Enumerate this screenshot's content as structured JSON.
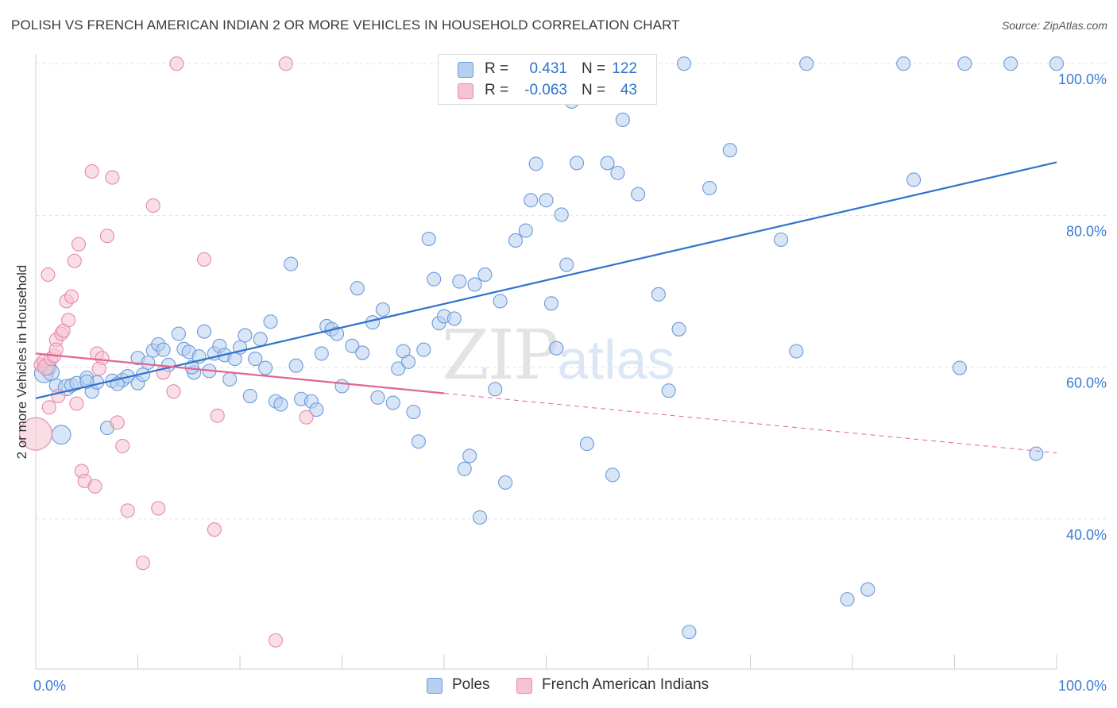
{
  "title": "POLISH VS FRENCH AMERICAN INDIAN 2 OR MORE VEHICLES IN HOUSEHOLD CORRELATION CHART",
  "source": "Source: ZipAtlas.com",
  "watermark": {
    "part1": "ZIP",
    "part2": "atlas"
  },
  "colors": {
    "poles_fill": "#b7cff0",
    "poles_stroke": "#6d9ad8",
    "poles_line": "#2e73cc",
    "fai_fill": "#f6c3d2",
    "fai_stroke": "#e48aa8",
    "fai_line": "#e06595",
    "tick_label": "#3a7bd5",
    "grid": "#e3e3e3"
  },
  "legend": {
    "poles": {
      "r_label": "R =",
      "r_value": "0.431",
      "n_label": "N =",
      "n_value": "122"
    },
    "fai": {
      "r_label": "R =",
      "r_value": "-0.063",
      "n_label": "N =",
      "n_value": "43"
    }
  },
  "bottom_legend": {
    "poles": "Poles",
    "fai": "French American Indians"
  },
  "chart_data": {
    "type": "scatter",
    "title": "POLISH VS FRENCH AMERICAN INDIAN 2 OR MORE VEHICLES IN HOUSEHOLD CORRELATION CHART",
    "xlabel": "",
    "ylabel": "2 or more Vehicles in Household",
    "xlim": [
      0,
      100
    ],
    "ylim": [
      20,
      102
    ],
    "x_tick_labels": [
      {
        "value": 0,
        "label": "0.0%"
      },
      {
        "value": 100,
        "label": "100.0%"
      }
    ],
    "y_tick_labels": [
      {
        "value": 100,
        "label": "100.0%"
      },
      {
        "value": 80,
        "label": "80.0%"
      },
      {
        "value": 60,
        "label": "60.0%"
      },
      {
        "value": 40,
        "label": "40.0%"
      }
    ],
    "grid": true,
    "legend_position": "top-center",
    "series": [
      {
        "name": "Poles",
        "trend": {
          "x": [
            0,
            100
          ],
          "y": [
            55.9,
            87.0
          ],
          "dashed_from": null
        },
        "points": [
          [
            0.8,
            59.2,
            14
          ],
          [
            1.2,
            60.0,
            12
          ],
          [
            1.5,
            59.3,
            12
          ],
          [
            2.0,
            57.6,
            10
          ],
          [
            2.5,
            51.1,
            14
          ],
          [
            3.0,
            57.3,
            12
          ],
          [
            3.5,
            57.6,
            10
          ],
          [
            4.0,
            57.9,
            10
          ],
          [
            5.0,
            58.6,
            10
          ],
          [
            5.5,
            56.8,
            10
          ],
          [
            6.0,
            58.0,
            10
          ],
          [
            7.0,
            52.0,
            10
          ],
          [
            7.5,
            58.2,
            10
          ],
          [
            8.5,
            58.3,
            10
          ],
          [
            9.0,
            58.8,
            10
          ],
          [
            10.0,
            57.9,
            10
          ],
          [
            10.0,
            61.2,
            10
          ],
          [
            10.5,
            59.0,
            10
          ],
          [
            11.0,
            60.6,
            10
          ],
          [
            11.5,
            62.2,
            10
          ],
          [
            12.0,
            63.0,
            10
          ],
          [
            12.5,
            62.3,
            10
          ],
          [
            13.0,
            60.3,
            10
          ],
          [
            14.0,
            64.4,
            10
          ],
          [
            14.5,
            62.4,
            10
          ],
          [
            15.0,
            62.0,
            10
          ],
          [
            15.5,
            59.3,
            10
          ],
          [
            16.0,
            61.4,
            10
          ],
          [
            16.5,
            64.7,
            10
          ],
          [
            17.0,
            59.5,
            10
          ],
          [
            17.5,
            61.8,
            10
          ],
          [
            18.0,
            62.8,
            10
          ],
          [
            18.5,
            61.6,
            10
          ],
          [
            19.0,
            58.4,
            10
          ],
          [
            19.5,
            61.1,
            10
          ],
          [
            20.0,
            62.6,
            10
          ],
          [
            20.5,
            64.2,
            10
          ],
          [
            21.0,
            56.2,
            10
          ],
          [
            21.5,
            61.1,
            10
          ],
          [
            22.0,
            63.7,
            10
          ],
          [
            22.5,
            59.9,
            10
          ],
          [
            23.0,
            66.0,
            10
          ],
          [
            23.5,
            55.5,
            10
          ],
          [
            24.0,
            55.1,
            10
          ],
          [
            25.0,
            73.6,
            10
          ],
          [
            25.5,
            60.2,
            10
          ],
          [
            26.0,
            55.8,
            10
          ],
          [
            27.0,
            55.5,
            10
          ],
          [
            27.5,
            54.4,
            10
          ],
          [
            28.0,
            61.8,
            10
          ],
          [
            28.5,
            65.4,
            10
          ],
          [
            29.0,
            65.0,
            10
          ],
          [
            29.5,
            64.4,
            10
          ],
          [
            30.0,
            57.5,
            10
          ],
          [
            31.0,
            62.8,
            10
          ],
          [
            31.5,
            70.4,
            10
          ],
          [
            32.0,
            61.9,
            10
          ],
          [
            33.0,
            65.9,
            10
          ],
          [
            33.5,
            56.0,
            10
          ],
          [
            34.0,
            67.6,
            10
          ],
          [
            35.0,
            55.3,
            10
          ],
          [
            35.5,
            59.8,
            10
          ],
          [
            36.0,
            62.1,
            10
          ],
          [
            36.5,
            60.7,
            10
          ],
          [
            37.0,
            54.1,
            10
          ],
          [
            37.5,
            50.2,
            10
          ],
          [
            38.0,
            62.3,
            10
          ],
          [
            38.5,
            76.9,
            10
          ],
          [
            39.0,
            71.6,
            10
          ],
          [
            39.5,
            65.8,
            10
          ],
          [
            40.0,
            66.7,
            10
          ],
          [
            41.0,
            66.4,
            10
          ],
          [
            41.5,
            71.3,
            10
          ],
          [
            42.0,
            46.6,
            10
          ],
          [
            42.5,
            48.3,
            10
          ],
          [
            43.0,
            70.9,
            10
          ],
          [
            43.5,
            40.2,
            10
          ],
          [
            44.0,
            72.2,
            10
          ],
          [
            45.0,
            57.1,
            10
          ],
          [
            45.5,
            68.7,
            10
          ],
          [
            46.0,
            44.8,
            10
          ],
          [
            47.0,
            76.7,
            10
          ],
          [
            48.0,
            78.0,
            10
          ],
          [
            48.5,
            82.0,
            10
          ],
          [
            49.0,
            86.8,
            10
          ],
          [
            50.0,
            82.0,
            10
          ],
          [
            50.5,
            68.4,
            10
          ],
          [
            51.0,
            62.5,
            10
          ],
          [
            51.5,
            80.1,
            10
          ],
          [
            52.0,
            73.5,
            10
          ],
          [
            52.5,
            95.0,
            10
          ],
          [
            53.0,
            86.9,
            10
          ],
          [
            54.0,
            49.9,
            10
          ],
          [
            55.0,
            100.0,
            10
          ],
          [
            56.0,
            86.9,
            10
          ],
          [
            56.5,
            45.8,
            10
          ],
          [
            57.0,
            85.6,
            10
          ],
          [
            57.5,
            92.6,
            10
          ],
          [
            59.0,
            82.8,
            10
          ],
          [
            59.5,
            100.0,
            10
          ],
          [
            61.0,
            69.6,
            10
          ],
          [
            62.0,
            56.9,
            10
          ],
          [
            63.0,
            65.0,
            10
          ],
          [
            63.5,
            100.0,
            10
          ],
          [
            64.0,
            25.1,
            10
          ],
          [
            66.0,
            83.6,
            10
          ],
          [
            68.0,
            88.6,
            10
          ],
          [
            73.0,
            76.8,
            10
          ],
          [
            74.5,
            62.1,
            10
          ],
          [
            75.5,
            100.0,
            10
          ],
          [
            79.5,
            29.4,
            10
          ],
          [
            81.5,
            30.7,
            10
          ],
          [
            85.0,
            100.0,
            10
          ],
          [
            86.0,
            84.7,
            10
          ],
          [
            90.5,
            59.9,
            10
          ],
          [
            91.0,
            100.0,
            10
          ],
          [
            95.5,
            100.0,
            10
          ],
          [
            98.0,
            48.6,
            10
          ],
          [
            100.0,
            100.0,
            10
          ],
          [
            5.0,
            58.1,
            10
          ],
          [
            8.0,
            57.8,
            10
          ],
          [
            15.3,
            60.0,
            10
          ]
        ]
      },
      {
        "name": "French American Indians",
        "trend": {
          "x": [
            0,
            100
          ],
          "y": [
            61.8,
            48.7
          ],
          "dashed_from": 40
        },
        "points": [
          [
            0.0,
            51.2,
            24
          ],
          [
            0.5,
            60.3,
            10
          ],
          [
            0.8,
            60.8,
            10
          ],
          [
            1.0,
            60.0,
            12
          ],
          [
            1.2,
            72.2,
            10
          ],
          [
            1.3,
            54.7,
            10
          ],
          [
            1.5,
            61.1,
            10
          ],
          [
            1.8,
            61.5,
            10
          ],
          [
            2.0,
            63.6,
            10
          ],
          [
            2.0,
            62.3,
            10
          ],
          [
            2.2,
            56.2,
            10
          ],
          [
            2.5,
            64.4,
            10
          ],
          [
            2.7,
            64.8,
            10
          ],
          [
            3.0,
            68.7,
            10
          ],
          [
            3.2,
            66.2,
            10
          ],
          [
            3.5,
            69.3,
            10
          ],
          [
            3.8,
            74.0,
            10
          ],
          [
            4.0,
            55.2,
            10
          ],
          [
            4.2,
            76.2,
            10
          ],
          [
            4.5,
            46.3,
            10
          ],
          [
            4.8,
            45.0,
            10
          ],
          [
            5.5,
            85.8,
            10
          ],
          [
            5.8,
            44.3,
            10
          ],
          [
            6.0,
            61.8,
            10
          ],
          [
            6.5,
            61.2,
            10
          ],
          [
            7.0,
            77.3,
            10
          ],
          [
            7.5,
            85.0,
            10
          ],
          [
            8.0,
            52.7,
            10
          ],
          [
            8.5,
            49.6,
            10
          ],
          [
            9.0,
            41.1,
            10
          ],
          [
            10.5,
            34.2,
            10
          ],
          [
            11.5,
            81.3,
            10
          ],
          [
            12.0,
            41.4,
            10
          ],
          [
            12.5,
            59.3,
            10
          ],
          [
            13.5,
            56.8,
            10
          ],
          [
            13.8,
            100.0,
            10
          ],
          [
            16.5,
            74.2,
            10
          ],
          [
            17.8,
            53.6,
            10
          ],
          [
            17.5,
            38.6,
            10
          ],
          [
            23.5,
            24.0,
            10
          ],
          [
            24.5,
            100.0,
            10
          ],
          [
            26.5,
            53.4,
            10
          ],
          [
            6.2,
            59.8,
            10
          ]
        ]
      }
    ]
  }
}
